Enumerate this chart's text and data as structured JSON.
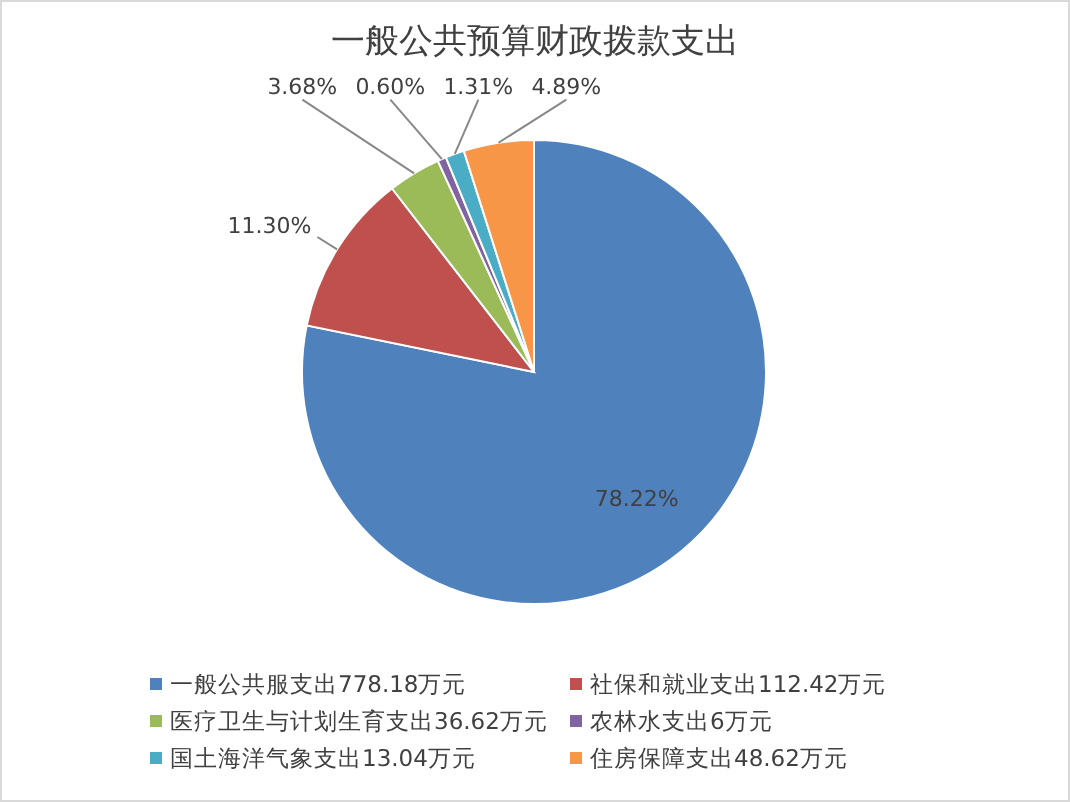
{
  "chart_data": {
    "type": "pie",
    "title": "一般公共预算财政拨款支出",
    "categories": [
      "一般公共服支出778.18万元",
      "社保和就业支出112.42万元",
      "医疗卫生与计划生育支出36.62万元",
      "农林水支出6万元",
      "国土海洋气象支出13.04万元",
      "住房保障支出48.62万元"
    ],
    "values": [
      78.22,
      11.3,
      3.68,
      0.6,
      1.31,
      4.89
    ],
    "value_labels": [
      "78.22%",
      "11.30%",
      "3.68%",
      "0.60%",
      "1.31%",
      "4.89%"
    ],
    "colors": [
      "#4f81bd",
      "#c0504d",
      "#9bbb59",
      "#8064a2",
      "#4bacc6",
      "#f79646"
    ],
    "legend": "bottom"
  }
}
